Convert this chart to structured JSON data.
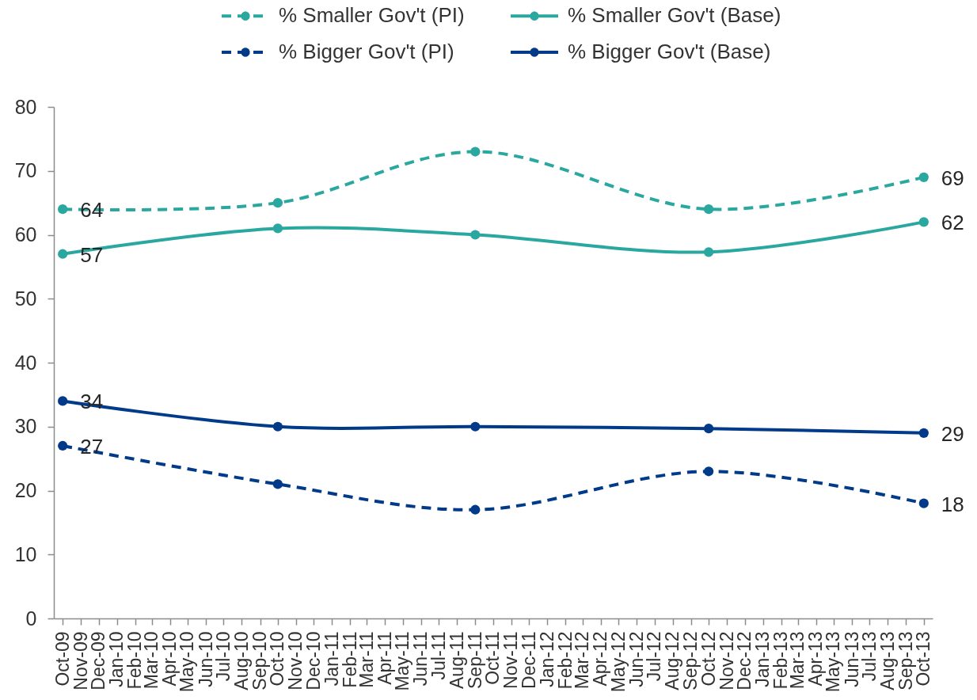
{
  "chart_data": {
    "type": "line",
    "x": [
      "2009-10",
      "2010-10",
      "2011-09",
      "2012-10",
      "2013-10"
    ],
    "xlim": [
      "2009-09-16",
      "2013-10-16"
    ],
    "xticks": [
      {
        "value": "2009-10",
        "label": "Oct-09"
      },
      {
        "value": "2009-11",
        "label": "Nov-09"
      },
      {
        "value": "2009-12",
        "label": "Dec-09"
      },
      {
        "value": "2010-01",
        "label": "Jan-10"
      },
      {
        "value": "2010-02",
        "label": "Feb-10"
      },
      {
        "value": "2010-03",
        "label": "Mar-10"
      },
      {
        "value": "2010-04",
        "label": "Apr-10"
      },
      {
        "value": "2010-05",
        "label": "May-10"
      },
      {
        "value": "2010-06",
        "label": "Jun-10"
      },
      {
        "value": "2010-07",
        "label": "Jul-10"
      },
      {
        "value": "2010-08",
        "label": "Aug-10"
      },
      {
        "value": "2010-09",
        "label": "Sep-10"
      },
      {
        "value": "2010-10",
        "label": "Oct-10"
      },
      {
        "value": "2010-11",
        "label": "Nov-10"
      },
      {
        "value": "2010-12",
        "label": "Dec-10"
      },
      {
        "value": "2011-01",
        "label": "Jan-11"
      },
      {
        "value": "2011-02",
        "label": "Feb-11"
      },
      {
        "value": "2011-03",
        "label": "Mar-11"
      },
      {
        "value": "2011-04",
        "label": "Apr-11"
      },
      {
        "value": "2011-05",
        "label": "May-11"
      },
      {
        "value": "2011-06",
        "label": "Jun-11"
      },
      {
        "value": "2011-07",
        "label": "Jul-11"
      },
      {
        "value": "2011-08",
        "label": "Aug-11"
      },
      {
        "value": "2011-09",
        "label": "Sep-11"
      },
      {
        "value": "2011-10",
        "label": "Oct-11"
      },
      {
        "value": "2011-11",
        "label": "Nov-11"
      },
      {
        "value": "2011-12",
        "label": "Dec-11"
      },
      {
        "value": "2012-01",
        "label": "Jan-12"
      },
      {
        "value": "2012-02",
        "label": "Feb-12"
      },
      {
        "value": "2012-03",
        "label": "Mar-12"
      },
      {
        "value": "2012-04",
        "label": "Apr-12"
      },
      {
        "value": "2012-05",
        "label": "May-12"
      },
      {
        "value": "2012-06",
        "label": "Jun-12"
      },
      {
        "value": "2012-07",
        "label": "Jul-12"
      },
      {
        "value": "2012-08",
        "label": "Aug-12"
      },
      {
        "value": "2012-09",
        "label": "Sep-12"
      },
      {
        "value": "2012-10",
        "label": "Oct-12"
      },
      {
        "value": "2012-11",
        "label": "Nov-12"
      },
      {
        "value": "2012-12",
        "label": "Dec-12"
      },
      {
        "value": "2013-01",
        "label": "Jan-13"
      },
      {
        "value": "2013-02",
        "label": "Feb-13"
      },
      {
        "value": "2013-03",
        "label": "Mar-13"
      },
      {
        "value": "2013-04",
        "label": "Apr-13"
      },
      {
        "value": "2013-05",
        "label": "May-13"
      },
      {
        "value": "2013-06",
        "label": "Jun-13"
      },
      {
        "value": "2013-07",
        "label": "Jul-13"
      },
      {
        "value": "2013-08",
        "label": "Aug-13"
      },
      {
        "value": "2013-09",
        "label": "Sep-13"
      },
      {
        "value": "2013-10",
        "label": "Oct-13"
      }
    ],
    "ylim": [
      0,
      80
    ],
    "yticks": [
      0,
      10,
      20,
      30,
      40,
      50,
      60,
      70,
      80
    ],
    "grid": false,
    "legend": "top",
    "marker": "circle",
    "series": [
      {
        "name": "% Smaller Gov't (PI)",
        "color": "#2aa8a0",
        "line_style": "dashed",
        "values": [
          64,
          65,
          73,
          64,
          69
        ],
        "value_labels": [
          "64",
          null,
          null,
          null,
          "69"
        ]
      },
      {
        "name": "% Smaller Gov't (Base)",
        "color": "#2aa8a0",
        "line_style": "solid",
        "values": [
          57,
          61,
          60,
          57.3,
          62
        ],
        "value_labels": [
          "57",
          null,
          null,
          null,
          "62"
        ]
      },
      {
        "name": "% Bigger Gov't (PI)",
        "color": "#023a8a",
        "line_style": "dashed",
        "values": [
          27,
          21,
          17,
          23,
          18
        ],
        "value_labels": [
          "27",
          null,
          null,
          null,
          "18"
        ]
      },
      {
        "name": "% Bigger Gov't (Base)",
        "color": "#023a8a",
        "line_style": "solid",
        "values": [
          34,
          30,
          30,
          29.7,
          29
        ],
        "value_labels": [
          "34",
          null,
          null,
          null,
          "29"
        ]
      }
    ]
  }
}
